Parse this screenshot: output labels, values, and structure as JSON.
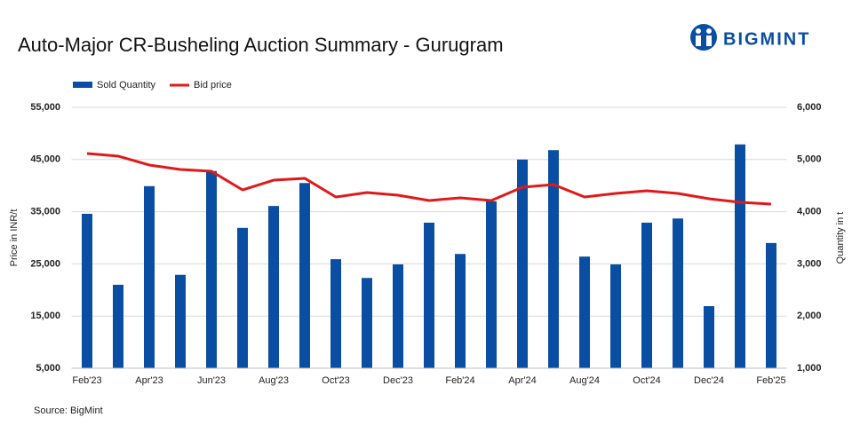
{
  "logo": "BIGMINT",
  "chart_data": {
    "type": "bar-line",
    "title": "Auto-Major CR-Busheling Auction Summary - Gurugram",
    "source": "Source: BigMint",
    "ylabel": "Price in INR/t",
    "y2label": "Quantity in t",
    "categories": [
      "Feb'23",
      null,
      "Apr'23",
      null,
      "Jun'23",
      null,
      "Aug'23",
      null,
      "Oct'23",
      null,
      "Dec'23",
      null,
      "Feb'24",
      null,
      "Apr'24",
      null,
      "Aug'24",
      null,
      "Oct'24",
      null,
      "Dec'24",
      null,
      "Feb'25"
    ],
    "series": [
      {
        "name": "Sold Quantity",
        "color": "#0a4ea3",
        "kind": "bar",
        "axis": "y2",
        "values": [
          3960,
          2600,
          4490,
          2790,
          4780,
          3690,
          4110,
          4550,
          3090,
          2730,
          2990,
          3790,
          3190,
          4200,
          5000,
          5180,
          3140,
          2990,
          3790,
          3870,
          2190,
          5290,
          3400
        ]
      },
      {
        "name": "Bid price",
        "color": "#e01a1a",
        "kind": "line",
        "values": [
          46160,
          45650,
          43950,
          43100,
          42750,
          39180,
          41050,
          41400,
          37820,
          38670,
          38160,
          37140,
          37650,
          37140,
          39690,
          40200,
          37820,
          38500,
          39010,
          38500,
          37480,
          36800,
          36460
        ]
      }
    ],
    "ylim": [
      5000,
      55000
    ],
    "yticks": [
      {
        "value": 5000,
        "label": "5,000"
      },
      {
        "value": 15000,
        "label": "15,000"
      },
      {
        "value": 25000,
        "label": "25,000"
      },
      {
        "value": 35000,
        "label": "35,000"
      },
      {
        "value": 45000,
        "label": "45,000"
      },
      {
        "value": 55000,
        "label": "55,000"
      }
    ],
    "y2lim": [
      1000,
      6000
    ],
    "y2ticks": [
      {
        "value": 1000,
        "label": "1,000"
      },
      {
        "value": 2000,
        "label": "2,000"
      },
      {
        "value": 3000,
        "label": "3,000"
      },
      {
        "value": 4000,
        "label": "4,000"
      },
      {
        "value": 5000,
        "label": "5,000"
      },
      {
        "value": 6000,
        "label": "6,000"
      }
    ],
    "grid": true
  }
}
